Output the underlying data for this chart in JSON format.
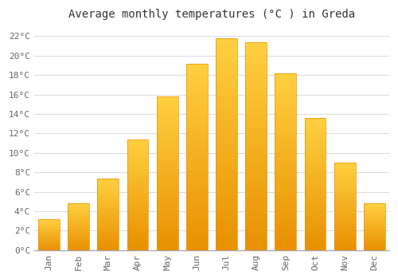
{
  "title": "Average monthly temperatures (°C ) in Greda",
  "months": [
    "Jan",
    "Feb",
    "Mar",
    "Apr",
    "May",
    "Jun",
    "Jul",
    "Aug",
    "Sep",
    "Oct",
    "Nov",
    "Dec"
  ],
  "values": [
    3.2,
    4.8,
    7.4,
    11.4,
    15.8,
    19.2,
    21.8,
    21.4,
    18.2,
    13.6,
    9.0,
    4.8
  ],
  "bar_color": "#FFC020",
  "bar_edge_color": "#E89000",
  "background_color": "#FFFFFF",
  "plot_bg_color": "#FFFFFF",
  "grid_color": "#DDDDDD",
  "ylim": [
    0,
    23
  ],
  "ytick_step": 2,
  "title_fontsize": 10,
  "tick_fontsize": 8,
  "font_family": "monospace",
  "title_color": "#333333",
  "tick_color": "#666666"
}
